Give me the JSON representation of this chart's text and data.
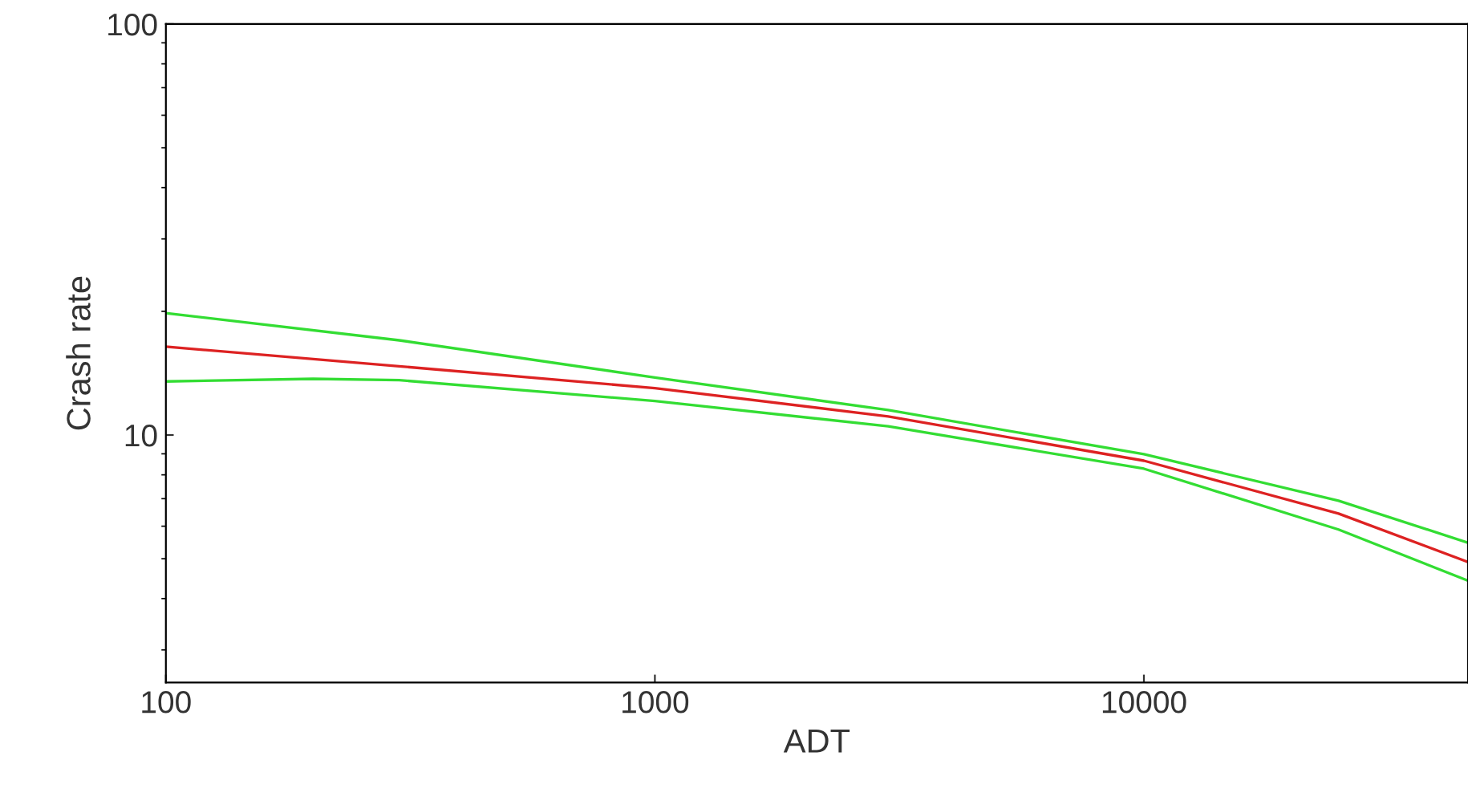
{
  "chart_data": {
    "type": "line",
    "xlabel": "ADT",
    "ylabel": "Crash rate",
    "log": "xy",
    "grid": false,
    "legend": false,
    "xlim": [
      100,
      46000
    ],
    "ylim": [
      2.5,
      100
    ],
    "xticks": [
      100,
      1000,
      10000
    ],
    "yticks": [
      10,
      100
    ],
    "series": [
      {
        "color": "#33dd33",
        "x": [
          100,
          300,
          1000,
          3000,
          10000,
          25000,
          46000
        ],
        "values": [
          19.8,
          17.0,
          13.8,
          11.5,
          8.98,
          6.92,
          5.47
        ]
      },
      {
        "color": "#dd2222",
        "x": [
          100,
          300,
          1000,
          3000,
          10000,
          25000,
          46000
        ],
        "values": [
          16.4,
          14.7,
          13.0,
          11.1,
          8.66,
          6.44,
          4.91
        ]
      },
      {
        "color": "#33dd33",
        "x": [
          100,
          200,
          300,
          1000,
          3000,
          10000,
          25000,
          46000
        ],
        "values": [
          13.5,
          13.7,
          13.6,
          12.1,
          10.5,
          8.28,
          5.89,
          4.42
        ]
      }
    ]
  }
}
